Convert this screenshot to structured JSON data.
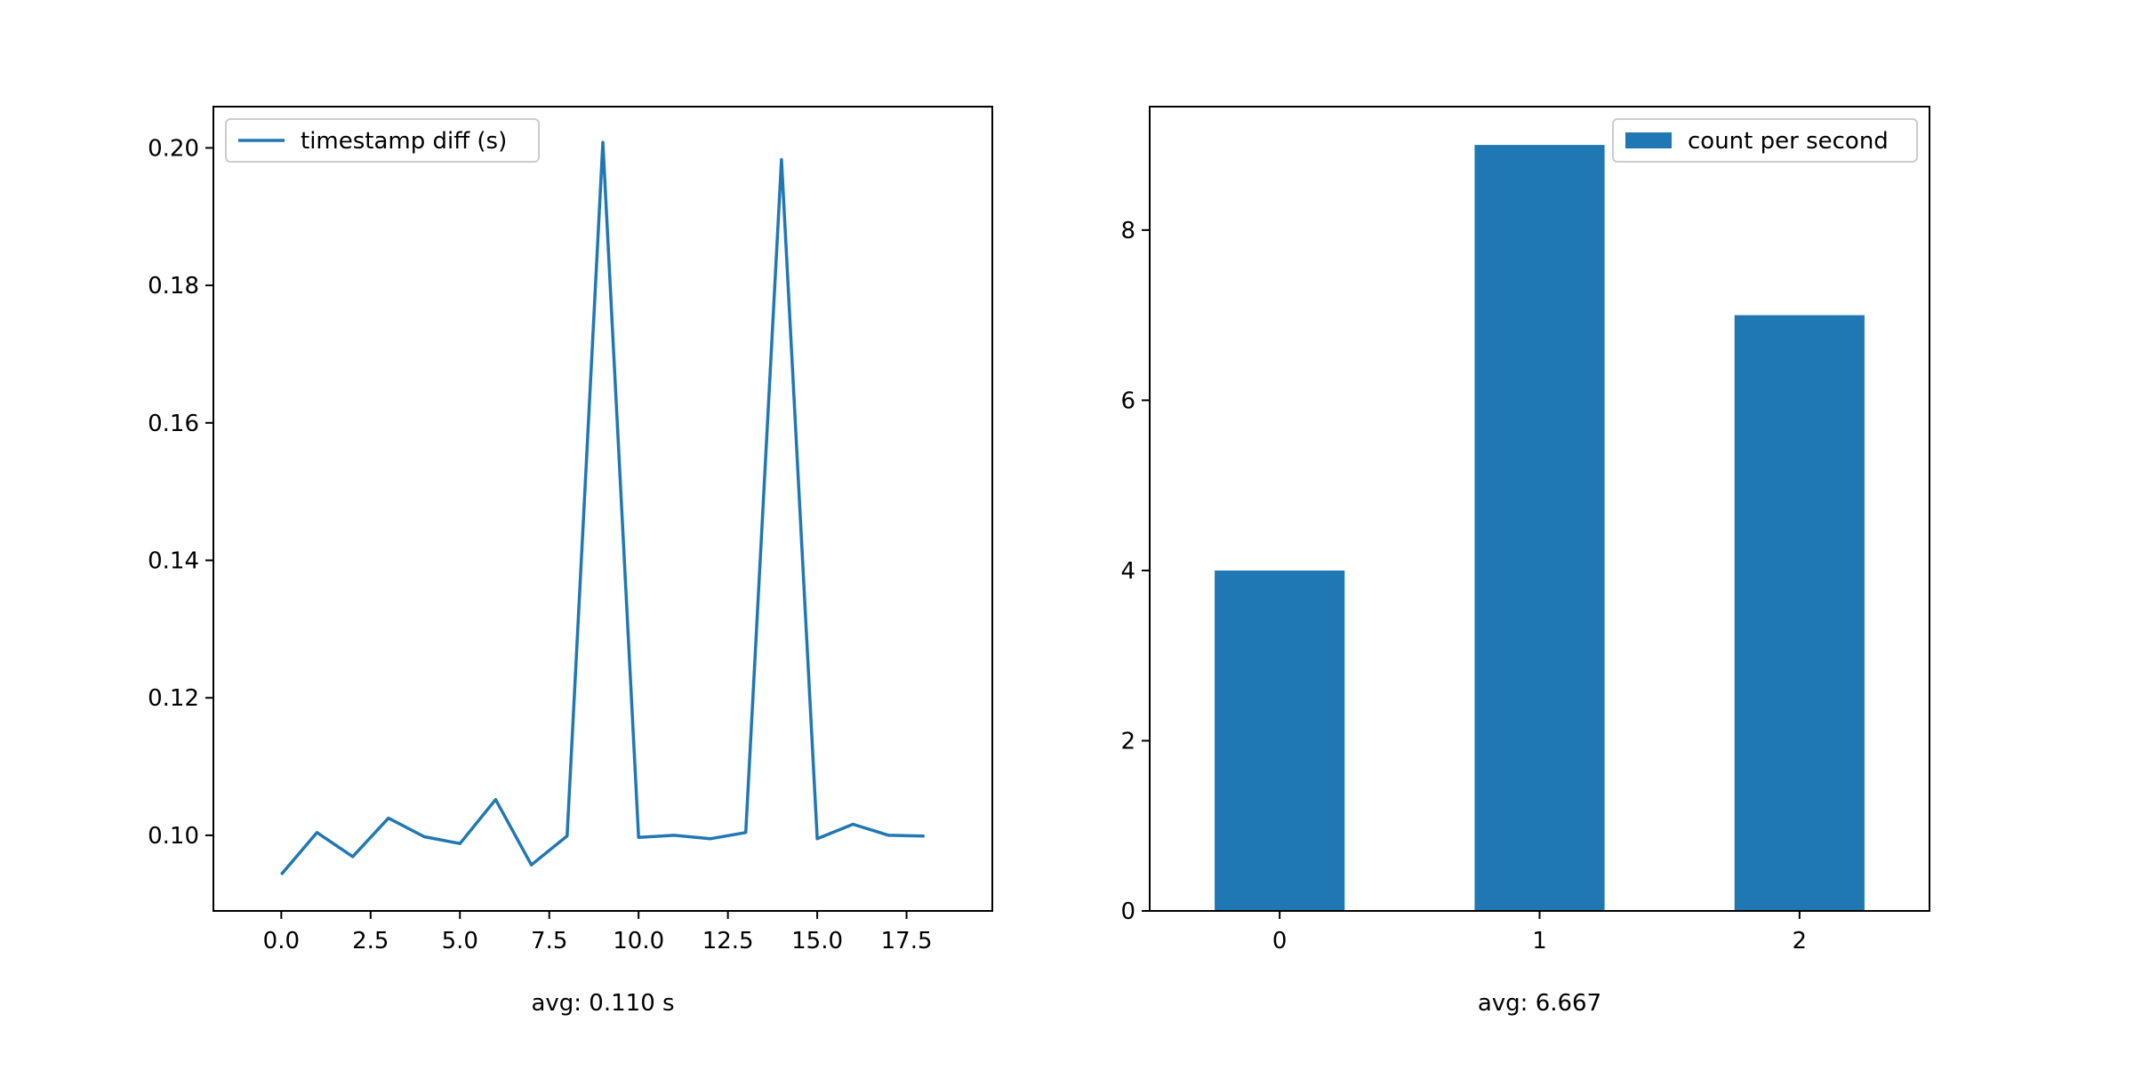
{
  "colors": {
    "series": "#1f77b4",
    "axis": "#000000",
    "legend_border": "#cccccc",
    "background": "#ffffff"
  },
  "chart_data": [
    {
      "type": "line",
      "x": [
        0,
        1,
        2,
        3,
        4,
        5,
        6,
        7,
        8,
        9,
        10,
        11,
        12,
        13,
        14,
        15,
        16,
        17,
        18
      ],
      "series": [
        {
          "name": "timestamp diff (s)",
          "values": [
            0.0943,
            0.1004,
            0.0969,
            0.1025,
            0.0998,
            0.0988,
            0.1052,
            0.0957,
            0.0999,
            0.2008,
            0.0997,
            0.1,
            0.0995,
            0.1004,
            0.1983,
            0.0995,
            0.1016,
            0.1,
            0.0999
          ]
        }
      ],
      "xlim": [
        -1.9,
        19.9
      ],
      "ylim": [
        0.089,
        0.206
      ],
      "xticks": [
        0,
        2.5,
        5,
        7.5,
        10,
        12.5,
        15,
        17.5
      ],
      "xtick_labels": [
        "0.0",
        "2.5",
        "5.0",
        "7.5",
        "10.0",
        "12.5",
        "15.0",
        "17.5"
      ],
      "yticks": [
        0.1,
        0.12,
        0.14,
        0.16,
        0.18,
        0.2
      ],
      "ytick_labels": [
        "0.10",
        "0.12",
        "0.14",
        "0.16",
        "0.18",
        "0.20"
      ],
      "xlabel": "avg: 0.110 s",
      "ylabel": "",
      "title": "",
      "legend_placement": "top-left",
      "grid": false
    },
    {
      "type": "bar",
      "categories": [
        "0",
        "1",
        "2"
      ],
      "series": [
        {
          "name": "count per second",
          "values": [
            4,
            9,
            7
          ]
        }
      ],
      "ylim": [
        0,
        9.45
      ],
      "yticks": [
        0,
        2,
        4,
        6,
        8
      ],
      "ytick_labels": [
        "0",
        "2",
        "4",
        "6",
        "8"
      ],
      "xlabel": "avg: 6.667",
      "ylabel": "",
      "title": "",
      "legend_placement": "top-right",
      "grid": false
    }
  ]
}
